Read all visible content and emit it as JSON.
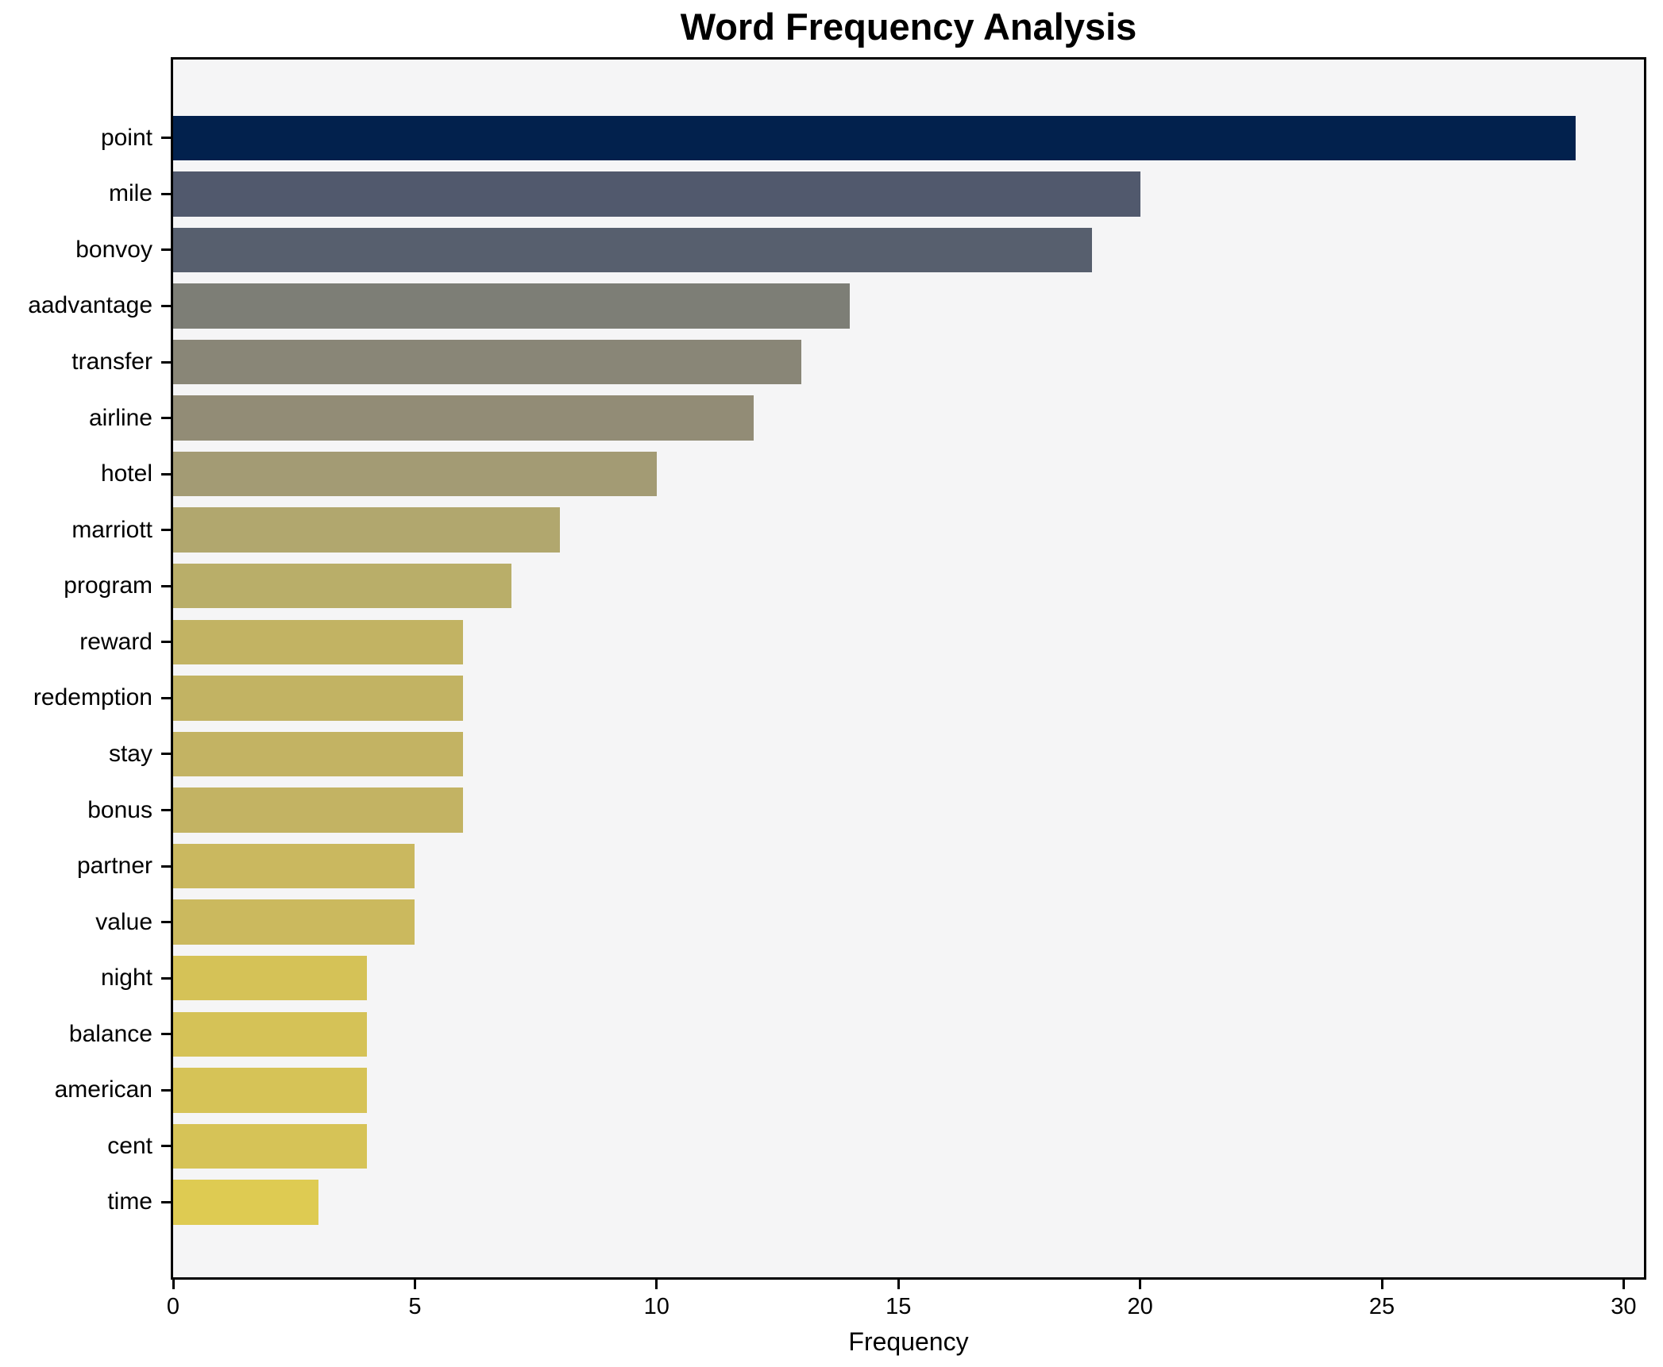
{
  "figure": {
    "background": "#ffffff"
  },
  "chart_data": {
    "type": "bar",
    "orientation": "horizontal",
    "title": "Word Frequency Analysis",
    "xlabel": "Frequency",
    "ylabel": "",
    "categories": [
      "point",
      "mile",
      "bonvoy",
      "aadvantage",
      "transfer",
      "airline",
      "hotel",
      "marriott",
      "program",
      "reward",
      "redemption",
      "stay",
      "bonus",
      "partner",
      "value",
      "night",
      "balance",
      "american",
      "cent",
      "time"
    ],
    "values": [
      29,
      20,
      19,
      14,
      13,
      12,
      10,
      8,
      7,
      6,
      6,
      6,
      6,
      5,
      5,
      4,
      4,
      4,
      4,
      3
    ],
    "bar_colors": [
      "#02214d",
      "#51596d",
      "#575f6e",
      "#7d7e76",
      "#898677",
      "#928c76",
      "#a39b74",
      "#b1a76e",
      "#b9ae69",
      "#c2b363",
      "#c2b363",
      "#c3b363",
      "#c3b363",
      "#cab85f",
      "#cbb95e",
      "#d5c257",
      "#d5c257",
      "#d6c357",
      "#d6c357",
      "#decb52"
    ],
    "x_ticks": [
      0,
      5,
      10,
      15,
      20,
      25,
      30
    ],
    "xlim": [
      0,
      30.42
    ],
    "grid": false,
    "legend": false,
    "plot_background": "#f5f5f6",
    "axis_color": "#000000"
  }
}
